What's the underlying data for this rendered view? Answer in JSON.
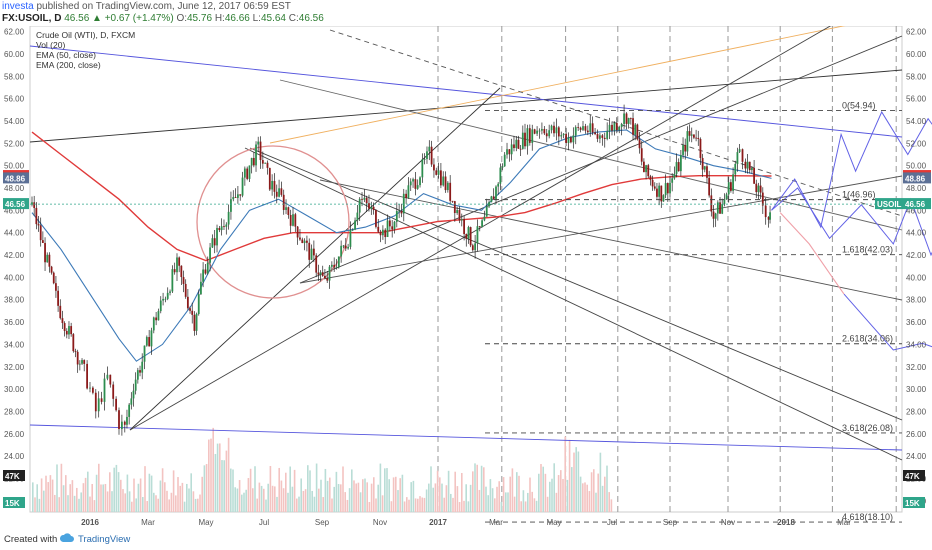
{
  "header": {
    "author": "investa",
    "published": "published on TradingView.com, June 12, 2017 06:59 EST",
    "symbol": "FX:USOIL, D",
    "change": "46.56 ▲ +0.67 (+1.47%)",
    "ohlc": [
      {
        "label": "O:",
        "value": "45.76"
      },
      {
        "label": "H:",
        "value": "46.66"
      },
      {
        "label": "L:",
        "value": "45.64"
      },
      {
        "label": "C:",
        "value": "46.56"
      }
    ]
  },
  "legend": [
    "Crude Oil (WTI), D, FXCM",
    "Vol (20)",
    "EMA (50, close)",
    "EMA (200, close)"
  ],
  "fib_labels": [
    "0(54.94)",
    "1(46.96)",
    "1.618(42.03)",
    "2.618(34.06)",
    "3.618(26.08)",
    "4.618(18.10)"
  ],
  "badges": {
    "left": [
      "49.07",
      "48.86",
      "46.56",
      "47K",
      "15K"
    ],
    "right": [
      "49.07",
      "48.86",
      "USOIL",
      "46.56",
      "47K",
      "15K"
    ]
  },
  "footer": {
    "created_with": "Created with",
    "brand": "TradingView"
  },
  "colors": {
    "up": "#26a69a",
    "down": "#ef5350",
    "ema50": "#3d7ab8",
    "ema200": "#e03a3a",
    "blue": "#6262e6",
    "orange": "#f0b060",
    "price": "#2fa58a",
    "badge_red": "#e53935",
    "badge_blue": "#5b6f95"
  },
  "chart_data": {
    "type": "candlestick",
    "title": "Crude Oil (WTI), D, FXCM",
    "ylim": [
      19,
      62.5
    ],
    "y_ticks": [
      "20.00",
      "22.00",
      "24.00",
      "26.00",
      "28.00",
      "30.00",
      "32.00",
      "34.00",
      "36.00",
      "38.00",
      "40.00",
      "42.00",
      "44.00",
      "46.00",
      "48.00",
      "50.00",
      "52.00",
      "54.00",
      "56.00",
      "58.00",
      "60.00",
      "62.00"
    ],
    "x_labels": [
      "2016",
      "Mar",
      "May",
      "Jul",
      "Sep",
      "Nov",
      "2017",
      "Mar",
      "May",
      "Jul",
      "Sep",
      "Nov",
      "2018",
      "Mar"
    ],
    "price_series": [
      {
        "m": 0,
        "v": 46.5
      },
      {
        "m": 0.3,
        "v": 43.5
      },
      {
        "m": 0.6,
        "v": 40.5
      },
      {
        "m": 0.9,
        "v": 37.5
      },
      {
        "m": 1.2,
        "v": 35.5
      },
      {
        "m": 1.5,
        "v": 33.5
      },
      {
        "m": 1.8,
        "v": 31.5
      },
      {
        "m": 2.0,
        "v": 30.0
      },
      {
        "m": 2.2,
        "v": 28.0
      },
      {
        "m": 2.4,
        "v": 29.5
      },
      {
        "m": 2.6,
        "v": 31.0
      },
      {
        "m": 2.8,
        "v": 29.0
      },
      {
        "m": 3.0,
        "v": 27.0
      },
      {
        "m": 3.2,
        "v": 26.5
      },
      {
        "m": 3.5,
        "v": 30.5
      },
      {
        "m": 3.8,
        "v": 32.5
      },
      {
        "m": 4.2,
        "v": 36.0
      },
      {
        "m": 4.6,
        "v": 38.5
      },
      {
        "m": 5.0,
        "v": 41.0
      },
      {
        "m": 5.3,
        "v": 38.5
      },
      {
        "m": 5.6,
        "v": 36.0
      },
      {
        "m": 5.9,
        "v": 40.5
      },
      {
        "m": 6.3,
        "v": 43.5
      },
      {
        "m": 6.7,
        "v": 45.5
      },
      {
        "m": 7.1,
        "v": 47.5
      },
      {
        "m": 7.5,
        "v": 50.0
      },
      {
        "m": 7.8,
        "v": 51.5
      },
      {
        "m": 8.2,
        "v": 48.5
      },
      {
        "m": 8.6,
        "v": 47.0
      },
      {
        "m": 9.0,
        "v": 45.0
      },
      {
        "m": 9.4,
        "v": 43.0
      },
      {
        "m": 9.8,
        "v": 41.0
      },
      {
        "m": 10.1,
        "v": 39.5
      },
      {
        "m": 10.5,
        "v": 41.5
      },
      {
        "m": 10.9,
        "v": 43.5
      },
      {
        "m": 11.3,
        "v": 47.0
      },
      {
        "m": 11.7,
        "v": 46.0
      },
      {
        "m": 12.1,
        "v": 44.0
      },
      {
        "m": 12.5,
        "v": 45.0
      },
      {
        "m": 12.9,
        "v": 47.5
      },
      {
        "m": 13.3,
        "v": 49.0
      },
      {
        "m": 13.7,
        "v": 51.0
      },
      {
        "m": 14.1,
        "v": 49.0
      },
      {
        "m": 14.5,
        "v": 47.0
      },
      {
        "m": 14.9,
        "v": 44.5
      },
      {
        "m": 15.2,
        "v": 43.0
      },
      {
        "m": 15.6,
        "v": 45.0
      },
      {
        "m": 16.0,
        "v": 48.0
      },
      {
        "m": 16.3,
        "v": 51.0
      },
      {
        "m": 16.7,
        "v": 52.0
      },
      {
        "m": 17.0,
        "v": 52.5
      },
      {
        "m": 17.5,
        "v": 53.5
      },
      {
        "m": 18.0,
        "v": 53.0
      },
      {
        "m": 18.5,
        "v": 52.5
      },
      {
        "m": 19.0,
        "v": 53.5
      },
      {
        "m": 19.5,
        "v": 52.5
      },
      {
        "m": 20.0,
        "v": 53.5
      },
      {
        "m": 20.5,
        "v": 54.5
      },
      {
        "m": 20.8,
        "v": 53.0
      },
      {
        "m": 21.1,
        "v": 49.5
      },
      {
        "m": 21.4,
        "v": 48.5
      },
      {
        "m": 21.7,
        "v": 47.5
      },
      {
        "m": 22.0,
        "v": 48.5
      },
      {
        "m": 22.3,
        "v": 50.0
      },
      {
        "m": 22.6,
        "v": 52.5
      },
      {
        "m": 22.9,
        "v": 53.0
      },
      {
        "m": 23.2,
        "v": 49.5
      },
      {
        "m": 23.5,
        "v": 45.5
      },
      {
        "m": 23.8,
        "v": 46.5
      },
      {
        "m": 24.1,
        "v": 48.5
      },
      {
        "m": 24.4,
        "v": 51.5
      },
      {
        "m": 24.6,
        "v": 50.5
      },
      {
        "m": 24.9,
        "v": 48.5
      },
      {
        "m": 25.2,
        "v": 46.5
      },
      {
        "m": 25.4,
        "v": 45.5
      },
      {
        "m": 25.5,
        "v": 46.56
      }
    ],
    "ema50": [
      {
        "m": 0,
        "v": 45.8
      },
      {
        "m": 1,
        "v": 42.5
      },
      {
        "m": 2,
        "v": 38.5
      },
      {
        "m": 3,
        "v": 34.5
      },
      {
        "m": 3.6,
        "v": 32.5
      },
      {
        "m": 4.5,
        "v": 34.0
      },
      {
        "m": 5.5,
        "v": 37.5
      },
      {
        "m": 6.5,
        "v": 42.5
      },
      {
        "m": 7.5,
        "v": 46.0
      },
      {
        "m": 8.5,
        "v": 47.0
      },
      {
        "m": 9.5,
        "v": 45.5
      },
      {
        "m": 10.5,
        "v": 44.0
      },
      {
        "m": 11.5,
        "v": 44.5
      },
      {
        "m": 12.5,
        "v": 45.5
      },
      {
        "m": 13.5,
        "v": 47.5
      },
      {
        "m": 14.5,
        "v": 46.5
      },
      {
        "m": 15.5,
        "v": 46.0
      },
      {
        "m": 16.5,
        "v": 48.5
      },
      {
        "m": 17.5,
        "v": 51.5
      },
      {
        "m": 18.5,
        "v": 52.5
      },
      {
        "m": 19.5,
        "v": 53.0
      },
      {
        "m": 20.5,
        "v": 53.2
      },
      {
        "m": 21.5,
        "v": 51.5
      },
      {
        "m": 22.5,
        "v": 50.8
      },
      {
        "m": 23.5,
        "v": 50.0
      },
      {
        "m": 24.5,
        "v": 49.5
      },
      {
        "m": 25.5,
        "v": 48.86
      }
    ],
    "ema200": [
      {
        "m": 0,
        "v": 53.0
      },
      {
        "m": 1,
        "v": 51.0
      },
      {
        "m": 2,
        "v": 49.0
      },
      {
        "m": 3,
        "v": 47.0
      },
      {
        "m": 4,
        "v": 44.5
      },
      {
        "m": 5,
        "v": 42.5
      },
      {
        "m": 6,
        "v": 41.5
      },
      {
        "m": 7,
        "v": 42.5
      },
      {
        "m": 8,
        "v": 43.5
      },
      {
        "m": 9,
        "v": 44.0
      },
      {
        "m": 10,
        "v": 44.0
      },
      {
        "m": 11,
        "v": 44.0
      },
      {
        "m": 12,
        "v": 44.0
      },
      {
        "m": 13,
        "v": 44.5
      },
      {
        "m": 14,
        "v": 45.0
      },
      {
        "m": 15,
        "v": 45.2
      },
      {
        "m": 16,
        "v": 45.4
      },
      {
        "m": 17,
        "v": 45.8
      },
      {
        "m": 18,
        "v": 46.6
      },
      {
        "m": 19,
        "v": 47.5
      },
      {
        "m": 20,
        "v": 48.3
      },
      {
        "m": 21,
        "v": 48.8
      },
      {
        "m": 22,
        "v": 49.0
      },
      {
        "m": 23,
        "v": 49.1
      },
      {
        "m": 24,
        "v": 49.1
      },
      {
        "m": 25,
        "v": 49.08
      },
      {
        "m": 25.5,
        "v": 49.07
      }
    ],
    "projection_zigzag": [
      {
        "m": 25.5,
        "v": 46.0
      },
      {
        "m": 26.3,
        "v": 48.8
      },
      {
        "m": 27.2,
        "v": 44.5
      },
      {
        "m": 27.9,
        "v": 52.8
      },
      {
        "m": 28.4,
        "v": 49.5
      },
      {
        "m": 29.3,
        "v": 54.8
      },
      {
        "m": 30.2,
        "v": 51.0
      },
      {
        "m": 30.9,
        "v": 54.2
      },
      {
        "m": 31.8,
        "v": 51.0
      },
      {
        "m": 32.5,
        "v": 53.5
      },
      {
        "m": 33.3,
        "v": 50.0
      },
      {
        "m": 34.2,
        "v": 53.5
      },
      {
        "m": 35.0,
        "v": 51.5
      },
      {
        "m": 35.8,
        "v": 49.0
      }
    ],
    "projection_zigzag_low": [
      {
        "m": 25.5,
        "v": 46.0
      },
      {
        "m": 26.4,
        "v": 48.0
      },
      {
        "m": 27.5,
        "v": 43.5
      },
      {
        "m": 28.6,
        "v": 46.5
      },
      {
        "m": 29.7,
        "v": 43.0
      },
      {
        "m": 30.3,
        "v": 47.0
      },
      {
        "m": 31.0,
        "v": 42.0
      },
      {
        "m": 31.9,
        "v": 47.0
      },
      {
        "m": 32.8,
        "v": 42.0
      },
      {
        "m": 33.6,
        "v": 45.0
      },
      {
        "m": 34.5,
        "v": 41.0
      },
      {
        "m": 35.6,
        "v": 45.5
      },
      {
        "m": 36.2,
        "v": 44.0
      }
    ],
    "projection_crash": [
      {
        "m": 28.0,
        "v": 38.5
      },
      {
        "m": 29.7,
        "v": 33.5
      },
      {
        "m": 30.7,
        "v": 34.1
      },
      {
        "m": 36.5,
        "v": 28.8
      }
    ],
    "projection_crash_hint": [
      {
        "m": 25.8,
        "v": 45.8
      },
      {
        "m": 26.8,
        "v": 43.0
      },
      {
        "m": 27.6,
        "v": 40.0
      },
      {
        "m": 28.0,
        "v": 38.5
      }
    ],
    "fib_levels": [
      54.94,
      46.96,
      42.03,
      34.06,
      26.08,
      18.1
    ],
    "vol_ticks": [
      "20.00",
      "15K",
      "47K"
    ]
  }
}
